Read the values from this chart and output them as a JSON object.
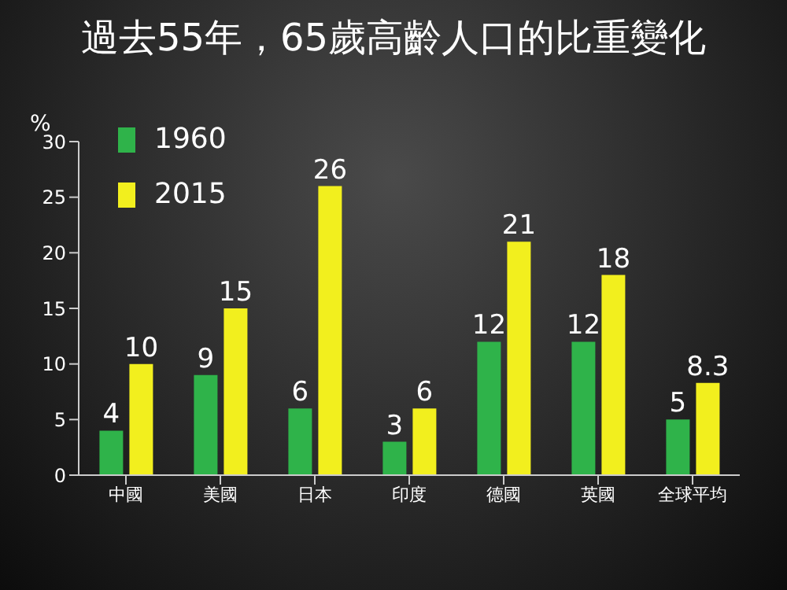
{
  "chart_data": {
    "type": "bar",
    "title": "過去55年，65歲高齡人口的比重變化",
    "ylabel": "%",
    "categories": [
      "中國",
      "美國",
      "日本",
      "印度",
      "德國",
      "英國",
      "全球平均"
    ],
    "series": [
      {
        "name": "1960",
        "color": "#2fb34a",
        "values": [
          4,
          9,
          6,
          3,
          12,
          12,
          5
        ]
      },
      {
        "name": "2015",
        "color": "#f2ef1e",
        "values": [
          10,
          15,
          26,
          6,
          21,
          18,
          8.3
        ]
      }
    ],
    "ylim": [
      0,
      30
    ],
    "yticks": [
      0,
      5,
      10,
      15,
      20,
      25,
      30
    ],
    "data_labels": true,
    "legend": "top left",
    "grid": false
  }
}
